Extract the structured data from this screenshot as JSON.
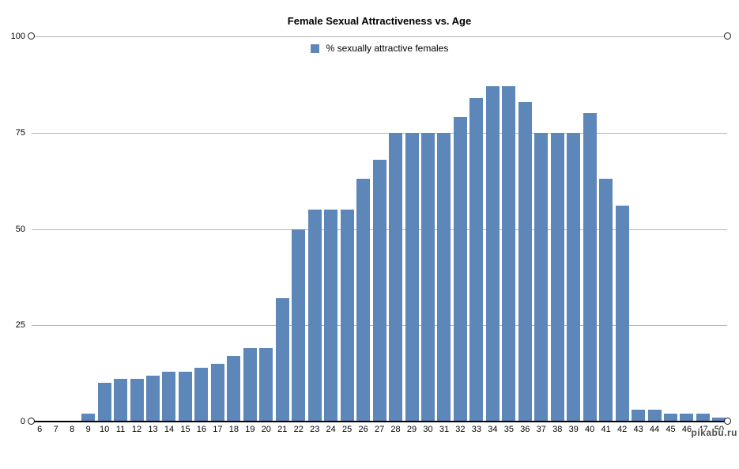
{
  "title": "Female Sexual Attractiveness vs. Age",
  "legend": {
    "label": "% sexually attractive females",
    "swatch_color": "#5d87b8"
  },
  "watermark": "pikabu.ru",
  "colors": {
    "bar": "#5d87b8",
    "gridline": "#b4b4b4",
    "axis": "#000000",
    "background": "#ffffff",
    "watermark": "#4f4f4f"
  },
  "chart_data": {
    "type": "bar",
    "title": "Female Sexual Attractiveness vs. Age",
    "series_name": "% sexually attractive females",
    "categories": [
      "6",
      "7",
      "8",
      "9",
      "10",
      "11",
      "12",
      "13",
      "14",
      "15",
      "16",
      "17",
      "18",
      "19",
      "20",
      "21",
      "22",
      "23",
      "24",
      "25",
      "26",
      "27",
      "28",
      "29",
      "30",
      "31",
      "32",
      "33",
      "34",
      "35",
      "36",
      "37",
      "38",
      "39",
      "40",
      "41",
      "42",
      "43",
      "44",
      "45",
      "46",
      "47",
      "50"
    ],
    "values": [
      0,
      0,
      0,
      2,
      10,
      11,
      11,
      12,
      13,
      13,
      14,
      15,
      17,
      19,
      19,
      32,
      50,
      55,
      55,
      55,
      63,
      68,
      75,
      75,
      75,
      75,
      79,
      84,
      87,
      87,
      83,
      75,
      75,
      75,
      80,
      63,
      56,
      3,
      3,
      2,
      2,
      2,
      1
    ],
    "xlabel": "",
    "ylabel": "",
    "ylim": [
      0,
      100
    ],
    "yticks": [
      0,
      25,
      50,
      75,
      100
    ],
    "grid": "horizontal",
    "legend_position": "top-center",
    "axis_endpoint_markers": "open-circles-on-top-and-bottom-lines"
  }
}
